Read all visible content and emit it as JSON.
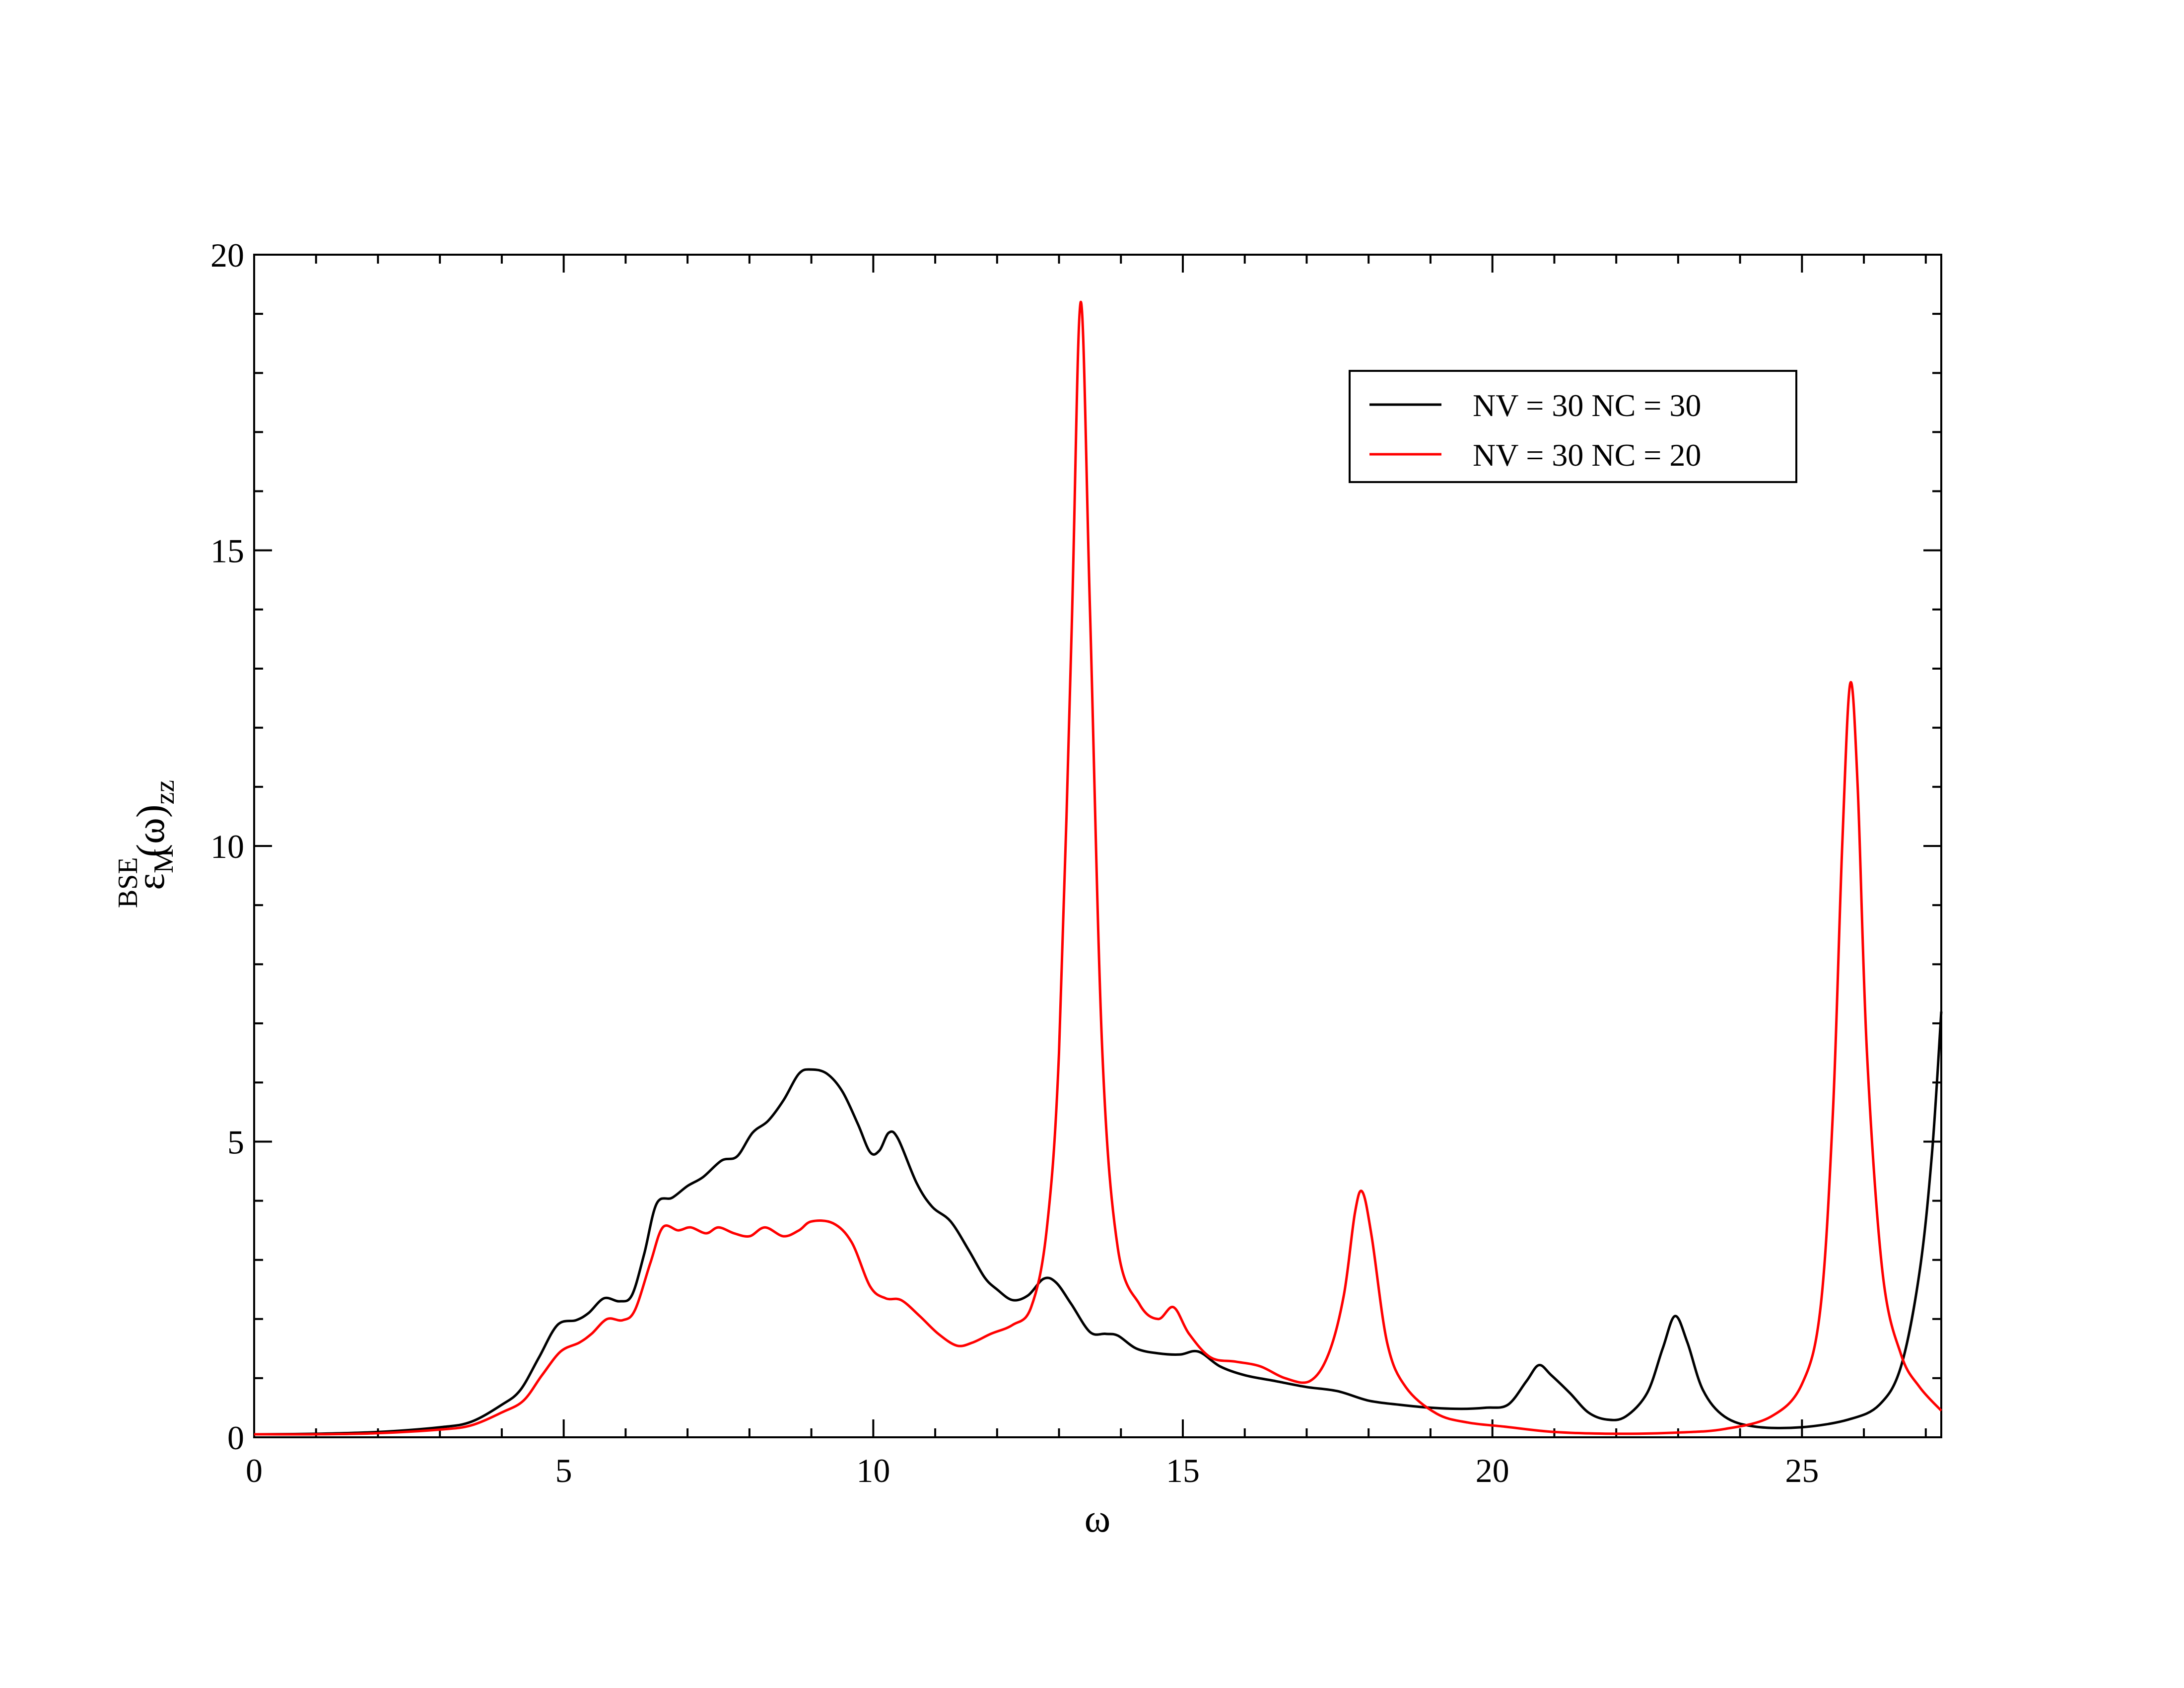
{
  "chart_data": {
    "type": "line",
    "xlabel": "ω",
    "ylabel": {
      "base": "ε",
      "sup": "BSE",
      "sub": "M",
      "arg": "(ω)",
      "arg_sub": "zz"
    },
    "xlim": [
      0,
      27.25
    ],
    "ylim": [
      0,
      20
    ],
    "x_ticks": [
      0,
      5,
      10,
      15,
      20,
      25
    ],
    "y_ticks": [
      0,
      5,
      10,
      15,
      20
    ],
    "x_tick_labels": [
      "0",
      "5",
      "10",
      "15",
      "20",
      "25"
    ],
    "y_tick_labels": [
      "0",
      "5",
      "10",
      "15",
      "20"
    ],
    "legend_position": "top-right",
    "grid": false,
    "series": [
      {
        "name": "NV = 30 NC = 30",
        "color": "#000000",
        "points": [
          [
            0,
            0.05
          ],
          [
            1,
            0.06
          ],
          [
            2,
            0.09
          ],
          [
            3,
            0.17
          ],
          [
            3.5,
            0.26
          ],
          [
            4,
            0.55
          ],
          [
            4.3,
            0.8
          ],
          [
            4.6,
            1.35
          ],
          [
            4.9,
            1.9
          ],
          [
            5.2,
            1.98
          ],
          [
            5.4,
            2.1
          ],
          [
            5.65,
            2.35
          ],
          [
            5.9,
            2.3
          ],
          [
            6.1,
            2.4
          ],
          [
            6.3,
            3.1
          ],
          [
            6.5,
            3.95
          ],
          [
            6.75,
            4.05
          ],
          [
            7,
            4.25
          ],
          [
            7.25,
            4.4
          ],
          [
            7.55,
            4.68
          ],
          [
            7.8,
            4.75
          ],
          [
            8.05,
            5.15
          ],
          [
            8.3,
            5.35
          ],
          [
            8.55,
            5.7
          ],
          [
            8.8,
            6.15
          ],
          [
            9.0,
            6.22
          ],
          [
            9.25,
            6.15
          ],
          [
            9.5,
            5.85
          ],
          [
            9.75,
            5.3
          ],
          [
            9.95,
            4.82
          ],
          [
            10.1,
            4.85
          ],
          [
            10.25,
            5.15
          ],
          [
            10.4,
            5.05
          ],
          [
            10.7,
            4.3
          ],
          [
            10.95,
            3.9
          ],
          [
            11.25,
            3.65
          ],
          [
            11.55,
            3.15
          ],
          [
            11.8,
            2.7
          ],
          [
            12.0,
            2.5
          ],
          [
            12.25,
            2.32
          ],
          [
            12.5,
            2.4
          ],
          [
            12.75,
            2.68
          ],
          [
            12.95,
            2.62
          ],
          [
            13.2,
            2.25
          ],
          [
            13.5,
            1.78
          ],
          [
            13.75,
            1.75
          ],
          [
            13.95,
            1.72
          ],
          [
            14.25,
            1.5
          ],
          [
            14.6,
            1.42
          ],
          [
            14.95,
            1.4
          ],
          [
            15.25,
            1.45
          ],
          [
            15.6,
            1.2
          ],
          [
            16.0,
            1.05
          ],
          [
            16.5,
            0.95
          ],
          [
            17.0,
            0.85
          ],
          [
            17.5,
            0.78
          ],
          [
            18.0,
            0.62
          ],
          [
            18.5,
            0.55
          ],
          [
            19.0,
            0.5
          ],
          [
            19.5,
            0.48
          ],
          [
            19.9,
            0.5
          ],
          [
            20.25,
            0.55
          ],
          [
            20.55,
            0.95
          ],
          [
            20.75,
            1.22
          ],
          [
            20.95,
            1.05
          ],
          [
            21.25,
            0.75
          ],
          [
            21.55,
            0.42
          ],
          [
            21.85,
            0.3
          ],
          [
            22.15,
            0.35
          ],
          [
            22.5,
            0.75
          ],
          [
            22.75,
            1.5
          ],
          [
            22.95,
            2.05
          ],
          [
            23.15,
            1.6
          ],
          [
            23.4,
            0.8
          ],
          [
            23.75,
            0.35
          ],
          [
            24.25,
            0.18
          ],
          [
            25.0,
            0.17
          ],
          [
            25.75,
            0.3
          ],
          [
            26.25,
            0.55
          ],
          [
            26.6,
            1.2
          ],
          [
            26.9,
            2.8
          ],
          [
            27.1,
            4.8
          ],
          [
            27.25,
            7.2
          ]
        ]
      },
      {
        "name": "NV = 30 NC = 20",
        "color": "#ff0000",
        "points": [
          [
            0,
            0.05
          ],
          [
            1,
            0.05
          ],
          [
            2,
            0.07
          ],
          [
            3,
            0.13
          ],
          [
            3.5,
            0.2
          ],
          [
            4,
            0.42
          ],
          [
            4.35,
            0.62
          ],
          [
            4.65,
            1.05
          ],
          [
            4.95,
            1.45
          ],
          [
            5.25,
            1.6
          ],
          [
            5.45,
            1.75
          ],
          [
            5.7,
            2.0
          ],
          [
            5.95,
            1.98
          ],
          [
            6.15,
            2.15
          ],
          [
            6.4,
            2.95
          ],
          [
            6.6,
            3.55
          ],
          [
            6.85,
            3.5
          ],
          [
            7.05,
            3.55
          ],
          [
            7.3,
            3.45
          ],
          [
            7.5,
            3.55
          ],
          [
            7.75,
            3.45
          ],
          [
            8.0,
            3.4
          ],
          [
            8.25,
            3.55
          ],
          [
            8.55,
            3.4
          ],
          [
            8.8,
            3.5
          ],
          [
            9.0,
            3.65
          ],
          [
            9.35,
            3.62
          ],
          [
            9.65,
            3.3
          ],
          [
            9.95,
            2.55
          ],
          [
            10.2,
            2.35
          ],
          [
            10.45,
            2.32
          ],
          [
            10.75,
            2.05
          ],
          [
            11.05,
            1.75
          ],
          [
            11.35,
            1.55
          ],
          [
            11.6,
            1.6
          ],
          [
            11.9,
            1.75
          ],
          [
            12.25,
            1.9
          ],
          [
            12.55,
            2.2
          ],
          [
            12.8,
            3.5
          ],
          [
            13.0,
            6.5
          ],
          [
            13.2,
            13.5
          ],
          [
            13.35,
            19.2
          ],
          [
            13.5,
            14.0
          ],
          [
            13.7,
            6.5
          ],
          [
            13.95,
            3.2
          ],
          [
            14.3,
            2.25
          ],
          [
            14.6,
            2.0
          ],
          [
            14.85,
            2.2
          ],
          [
            15.1,
            1.75
          ],
          [
            15.45,
            1.35
          ],
          [
            15.85,
            1.28
          ],
          [
            16.25,
            1.2
          ],
          [
            16.65,
            1.0
          ],
          [
            17.05,
            0.95
          ],
          [
            17.35,
            1.4
          ],
          [
            17.6,
            2.4
          ],
          [
            17.78,
            3.8
          ],
          [
            17.9,
            4.15
          ],
          [
            18.05,
            3.4
          ],
          [
            18.3,
            1.6
          ],
          [
            18.6,
            0.85
          ],
          [
            19.1,
            0.4
          ],
          [
            19.6,
            0.25
          ],
          [
            20.2,
            0.18
          ],
          [
            21.0,
            0.09
          ],
          [
            22.0,
            0.06
          ],
          [
            23.0,
            0.08
          ],
          [
            23.75,
            0.14
          ],
          [
            24.5,
            0.35
          ],
          [
            25.0,
            0.9
          ],
          [
            25.3,
            2.2
          ],
          [
            25.5,
            5.5
          ],
          [
            25.65,
            10.0
          ],
          [
            25.78,
            12.75
          ],
          [
            25.9,
            11.0
          ],
          [
            26.05,
            6.5
          ],
          [
            26.3,
            2.8
          ],
          [
            26.6,
            1.4
          ],
          [
            26.9,
            0.85
          ],
          [
            27.25,
            0.45
          ]
        ]
      }
    ]
  }
}
